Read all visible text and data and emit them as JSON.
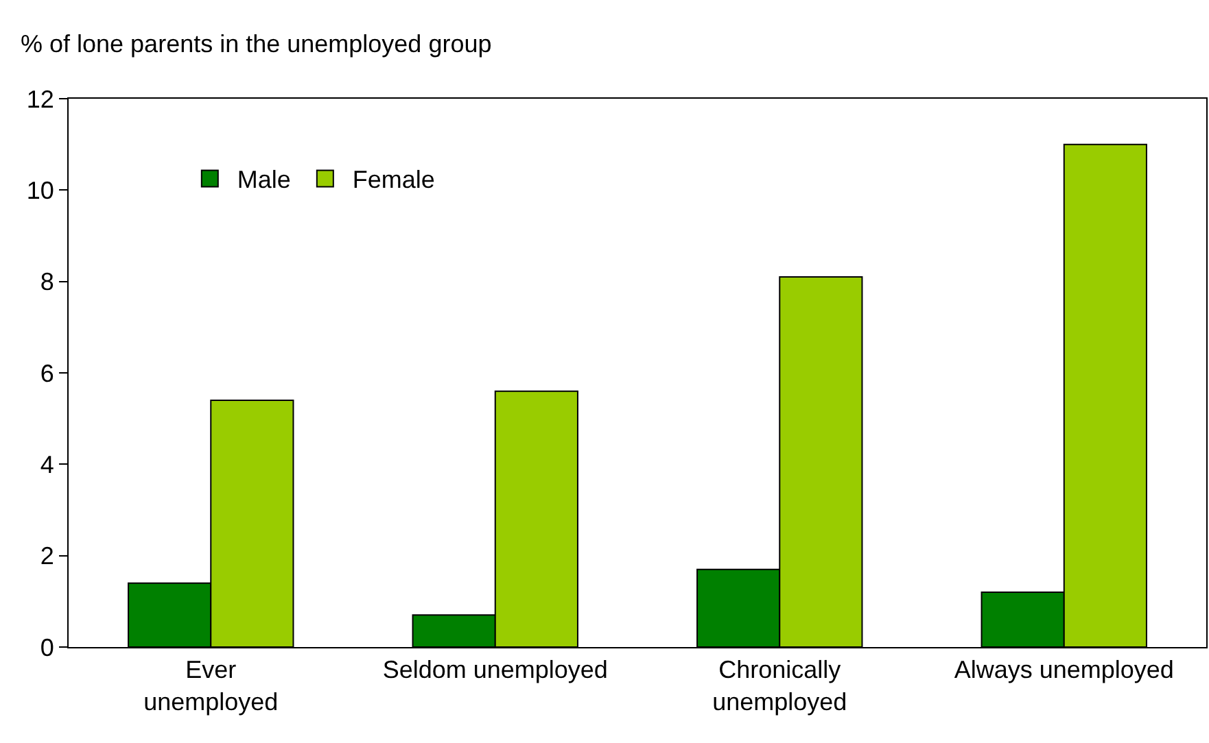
{
  "chart_data": {
    "type": "bar",
    "ylabel": "% of lone parents in the unemployed group",
    "categories": [
      "Ever\nunemployed",
      "Seldom unemployed",
      "Chronically\nunemployed",
      "Always unemployed"
    ],
    "series": [
      {
        "name": "Male",
        "color": "#008000",
        "values": [
          1.4,
          0.7,
          1.7,
          1.2
        ]
      },
      {
        "name": "Female",
        "color": "#99cc00",
        "values": [
          5.4,
          5.6,
          8.1,
          11.0
        ]
      }
    ],
    "ylim": [
      0,
      12
    ],
    "yticks": [
      0,
      2,
      4,
      6,
      8,
      10,
      12
    ],
    "grid": false,
    "legend": "top left"
  }
}
